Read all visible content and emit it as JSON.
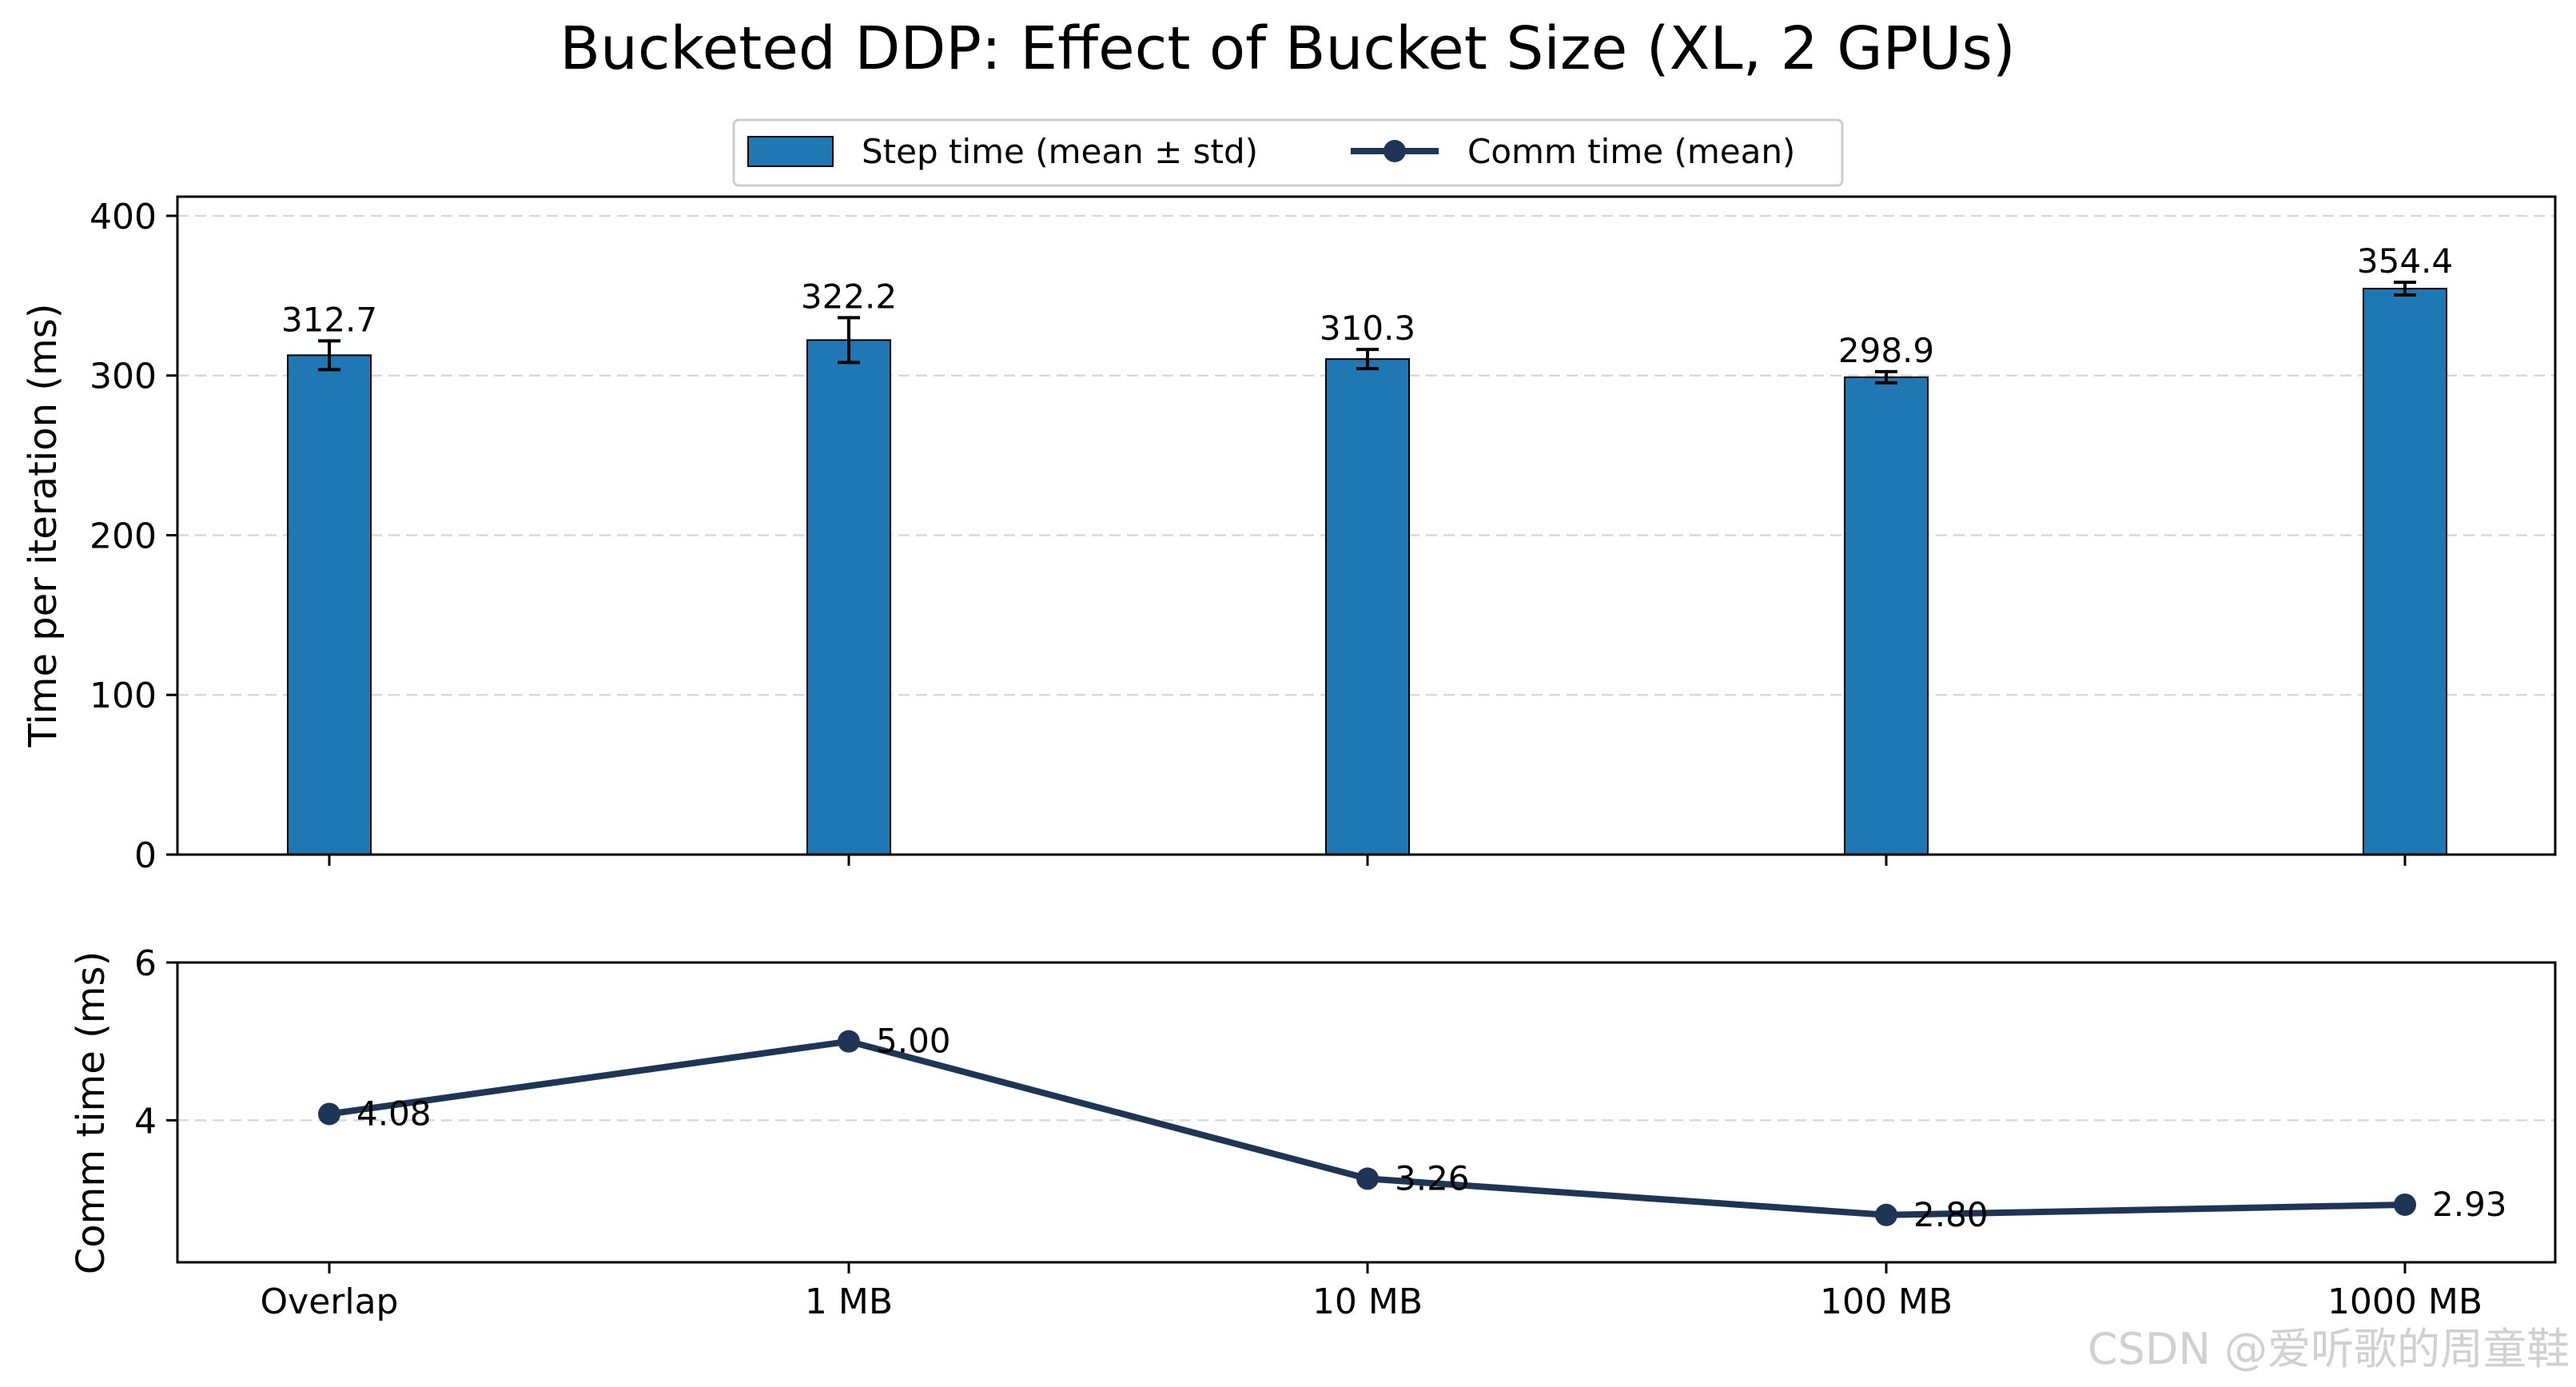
{
  "colors": {
    "bar": "#1f77b4",
    "line": "#1f3556",
    "grid": "#d9d9d9",
    "watermark": "#d0d0d0"
  },
  "chart_data": {
    "type": "bar+line",
    "title": "Bucketed DDP: Effect of Bucket Size (XL, 2 GPUs)",
    "categories": [
      "Overlap",
      "1 MB",
      "10 MB",
      "100 MB",
      "1000 MB"
    ],
    "legend": {
      "placement": "top-center",
      "entries": [
        "Step time (mean ± std)",
        "Comm time (mean)"
      ]
    },
    "top_panel": {
      "type": "bar",
      "series_name": "Step time (mean ± std)",
      "values": [
        312.7,
        322.2,
        310.3,
        298.9,
        354.4
      ],
      "std": [
        9.0,
        14.0,
        6.0,
        3.5,
        4.0
      ],
      "labels": [
        "312.7",
        "322.2",
        "310.3",
        "298.9",
        "354.4"
      ],
      "ylabel": "Time per iteration (ms)",
      "ylim": [
        0,
        412
      ],
      "yticks": [
        0,
        100,
        200,
        300,
        400
      ],
      "grid": "horizontal dashed"
    },
    "bottom_panel": {
      "type": "line",
      "series_name": "Comm time (mean)",
      "values": [
        4.08,
        5.0,
        3.26,
        2.8,
        2.93
      ],
      "labels": [
        "4.08",
        "5.00",
        "3.26",
        "2.80",
        "2.93"
      ],
      "ylabel": "Comm time (ms)",
      "ylim": [
        2.2,
        6.0
      ],
      "yticks": [
        4,
        6
      ],
      "grid": "horizontal dashed"
    }
  },
  "watermark": "CSDN @爱听歌的周童鞋"
}
